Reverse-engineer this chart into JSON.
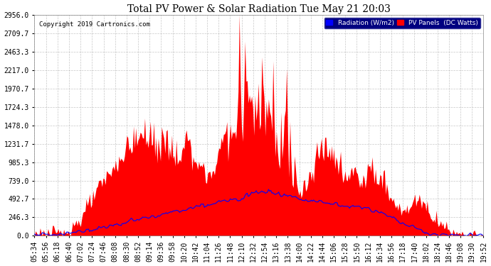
{
  "title": "Total PV Power & Solar Radiation Tue May 21 20:03",
  "copyright": "Copyright 2019 Cartronics.com",
  "bg_color": "#ffffff",
  "plot_bg_color": "#ffffff",
  "grid_color": "#b0b0b0",
  "y_ticks": [
    0.0,
    246.3,
    492.7,
    739.0,
    985.3,
    1231.7,
    1478.0,
    1724.3,
    1970.7,
    2217.0,
    2463.3,
    2709.7,
    2956.0
  ],
  "y_max": 2956.0,
  "legend_labels": [
    "Radiation (W/m2)",
    "PV Panels  (DC Watts)"
  ],
  "legend_colors": [
    "#0000ff",
    "#ff0000"
  ],
  "x_tick_labels": [
    "05:34",
    "05:56",
    "06:18",
    "06:40",
    "07:02",
    "07:24",
    "07:46",
    "08:08",
    "08:30",
    "08:52",
    "09:14",
    "09:36",
    "09:58",
    "10:20",
    "10:42",
    "11:04",
    "11:26",
    "11:48",
    "12:10",
    "12:32",
    "12:54",
    "13:16",
    "13:38",
    "14:00",
    "14:22",
    "14:44",
    "15:06",
    "15:28",
    "15:50",
    "16:12",
    "16:34",
    "16:56",
    "17:18",
    "17:40",
    "18:02",
    "18:24",
    "18:46",
    "19:08",
    "19:30",
    "19:52"
  ]
}
